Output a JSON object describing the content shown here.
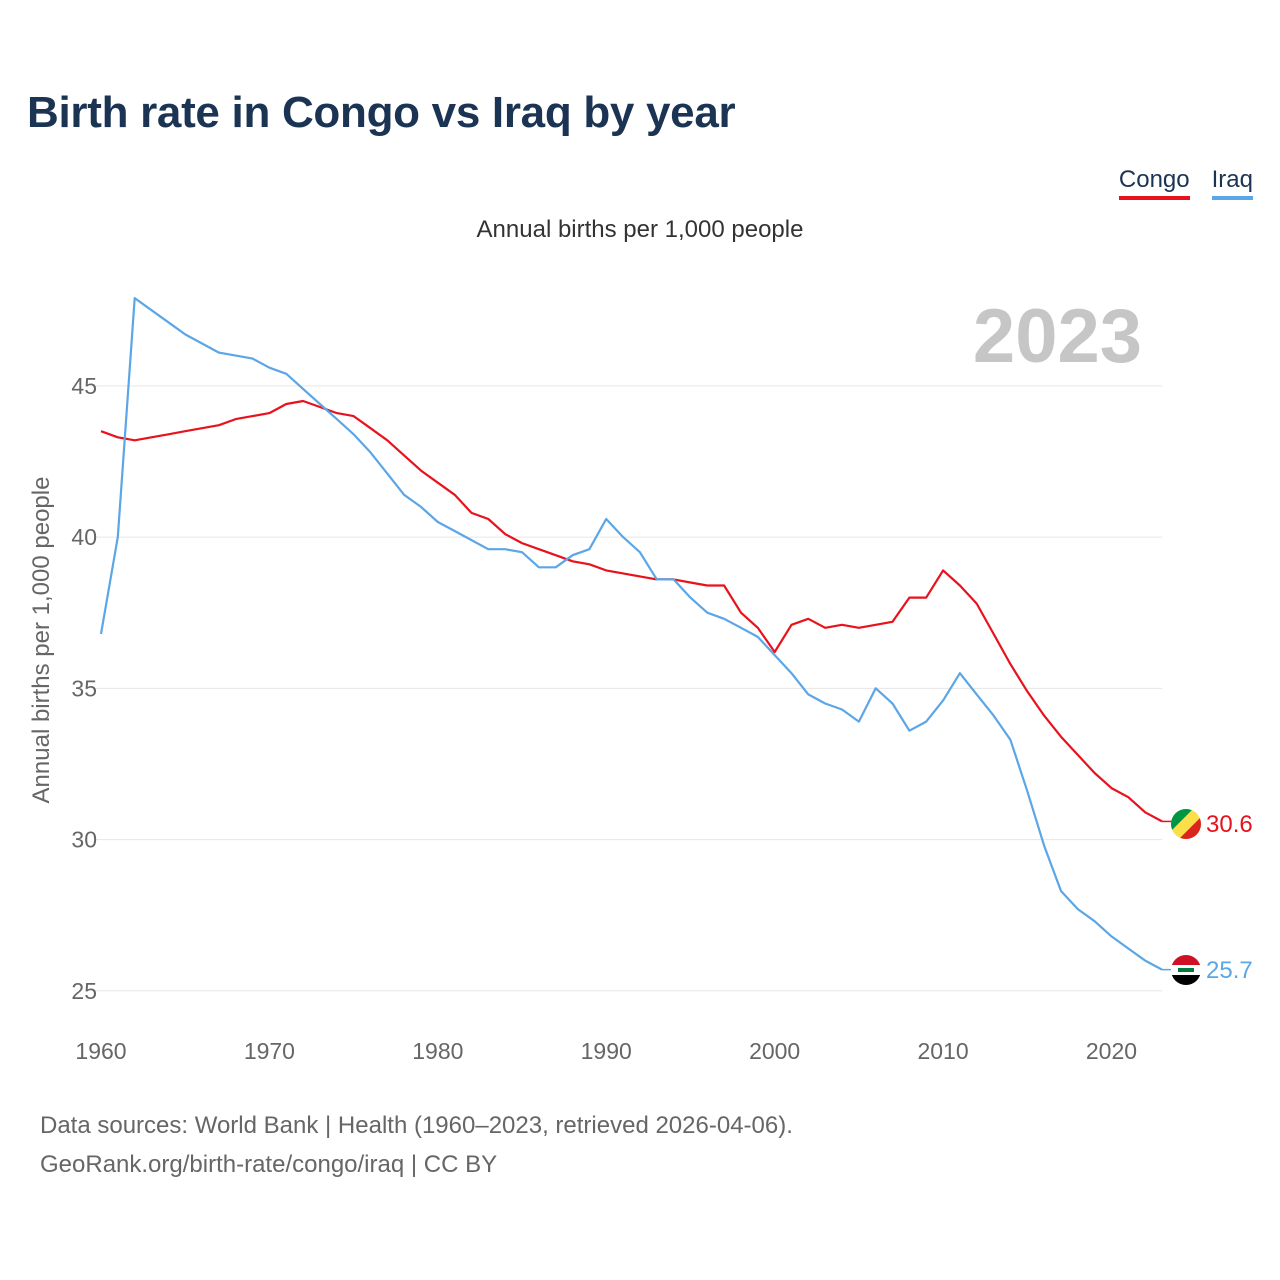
{
  "header": {
    "title": "Birth rate in Congo vs Iraq by year"
  },
  "legend": {
    "congo_label": "Congo",
    "iraq_label": "Iraq"
  },
  "subtitle": "Annual births per 1,000 people",
  "year_overlay": "2023",
  "footer": {
    "source_line": "Data sources: World Bank | Health (1960–2023, retrieved 2026-04-06).",
    "url_line": "GeoRank.org/birth-rate/congo/iraq | CC BY"
  },
  "colors": {
    "congo": "#e8121c",
    "iraq": "#5ba6e6",
    "title": "#1b3453",
    "grid": "#e6e6e6"
  },
  "icons": {
    "congo_marker": "congo-flag-icon",
    "iraq_marker": "iraq-flag-icon"
  },
  "chart_data": {
    "type": "line",
    "title": "Birth rate in Congo vs Iraq by year",
    "subtitle": "Annual births per 1,000 people",
    "xlabel": "",
    "ylabel": "Annual births per 1,000 people",
    "xlim": [
      1960,
      2023
    ],
    "ylim": [
      24.2,
      48.5
    ],
    "xticks": [
      1960,
      1970,
      1980,
      1990,
      2000,
      2010,
      2020
    ],
    "yticks": [
      25,
      30,
      35,
      40,
      45
    ],
    "grid": true,
    "legend_position": "top-right",
    "x": [
      1960,
      1961,
      1962,
      1963,
      1964,
      1965,
      1966,
      1967,
      1968,
      1969,
      1970,
      1971,
      1972,
      1973,
      1974,
      1975,
      1976,
      1977,
      1978,
      1979,
      1980,
      1981,
      1982,
      1983,
      1984,
      1985,
      1986,
      1987,
      1988,
      1989,
      1990,
      1991,
      1992,
      1993,
      1994,
      1995,
      1996,
      1997,
      1998,
      1999,
      2000,
      2001,
      2002,
      2003,
      2004,
      2005,
      2006,
      2007,
      2008,
      2009,
      2010,
      2011,
      2012,
      2013,
      2014,
      2015,
      2016,
      2017,
      2018,
      2019,
      2020,
      2021,
      2022,
      2023
    ],
    "series": [
      {
        "name": "Congo",
        "end_label": "30.6",
        "values": [
          43.5,
          43.3,
          43.2,
          43.3,
          43.4,
          43.5,
          43.6,
          43.7,
          43.9,
          44.0,
          44.1,
          44.4,
          44.5,
          44.3,
          44.1,
          44.0,
          43.6,
          43.2,
          42.7,
          42.2,
          41.8,
          41.4,
          40.8,
          40.6,
          40.1,
          39.8,
          39.6,
          39.4,
          39.2,
          39.1,
          38.9,
          38.8,
          38.7,
          38.6,
          38.6,
          38.5,
          38.4,
          38.4,
          37.5,
          37.0,
          36.2,
          37.1,
          37.3,
          37.0,
          37.1,
          37.0,
          37.1,
          37.2,
          38.0,
          38.0,
          38.9,
          38.4,
          37.8,
          36.8,
          35.8,
          34.9,
          34.1,
          33.4,
          32.8,
          32.2,
          31.7,
          31.4,
          30.9,
          30.6
        ]
      },
      {
        "name": "Iraq",
        "end_label": "25.7",
        "values": [
          36.8,
          40.0,
          47.9,
          47.5,
          47.1,
          46.7,
          46.4,
          46.1,
          46.0,
          45.9,
          45.6,
          45.4,
          44.9,
          44.4,
          43.9,
          43.4,
          42.8,
          42.1,
          41.4,
          41.0,
          40.5,
          40.2,
          39.9,
          39.6,
          39.6,
          39.5,
          39.0,
          39.0,
          39.4,
          39.6,
          40.6,
          40.0,
          39.5,
          38.6,
          38.6,
          38.0,
          37.5,
          37.3,
          37.0,
          36.7,
          36.1,
          35.5,
          34.8,
          34.5,
          34.3,
          33.9,
          35.0,
          34.5,
          33.6,
          33.9,
          34.6,
          35.5,
          34.8,
          34.1,
          33.3,
          31.6,
          29.8,
          28.3,
          27.7,
          27.3,
          26.8,
          26.4,
          26.0,
          25.7
        ]
      }
    ]
  }
}
